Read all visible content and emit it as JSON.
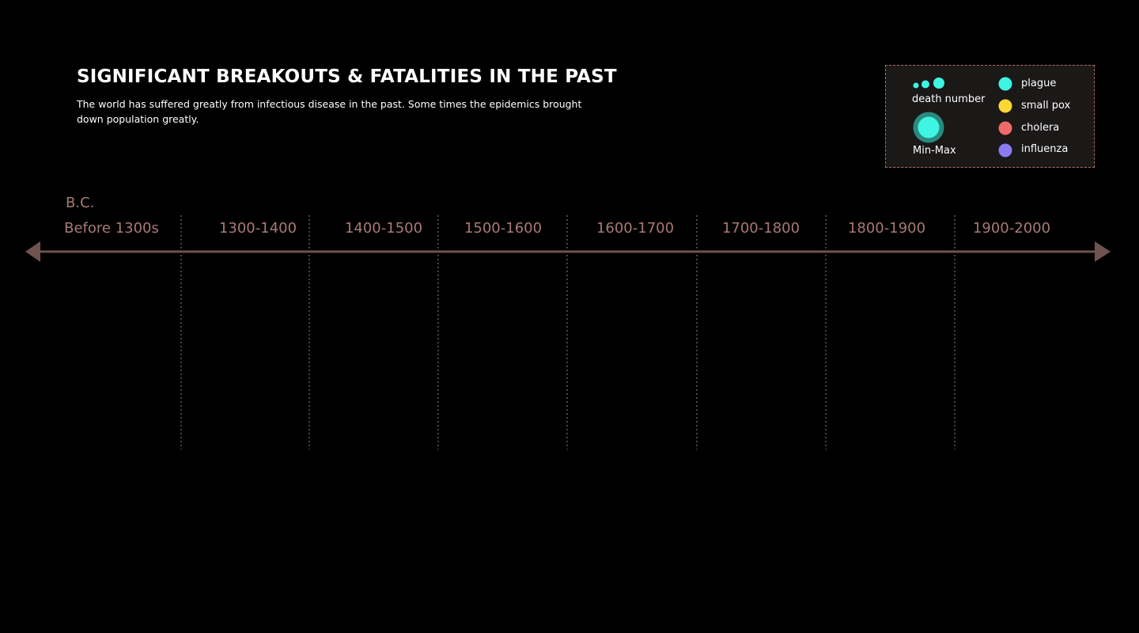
{
  "header": {
    "title": "SIGNIFICANT BREAKOUTS & FATALITIES IN THE PAST",
    "subtitle": "The world has suffered greatly from infectious disease in the past. Some times the epidemics brought down population greatly."
  },
  "legend": {
    "size_label": "death number",
    "range_label": "Min-Max",
    "diseases": [
      {
        "name": "plague",
        "color": "#3ef5e3"
      },
      {
        "name": "small pox",
        "color": "#fdd835"
      },
      {
        "name": "cholera",
        "color": "#f06a6a"
      },
      {
        "name": "influenza",
        "color": "#8a7cf0"
      }
    ]
  },
  "chart_data": {
    "type": "scatter",
    "title": "SIGNIFICANT BREAKOUTS & FATALITIES IN THE PAST",
    "era_label": "B.C.",
    "periods": [
      "Before 1300s",
      "1300-1400",
      "1400-1500",
      "1500-1600",
      "1600-1700",
      "1700-1800",
      "1800-1900",
      "1900-2000"
    ],
    "series": [
      {
        "name": "plague",
        "values": []
      },
      {
        "name": "small pox",
        "values": []
      },
      {
        "name": "cholera",
        "values": []
      },
      {
        "name": "influenza",
        "values": []
      }
    ],
    "axis_color": "#6e5350",
    "label_color": "#a87a74"
  }
}
